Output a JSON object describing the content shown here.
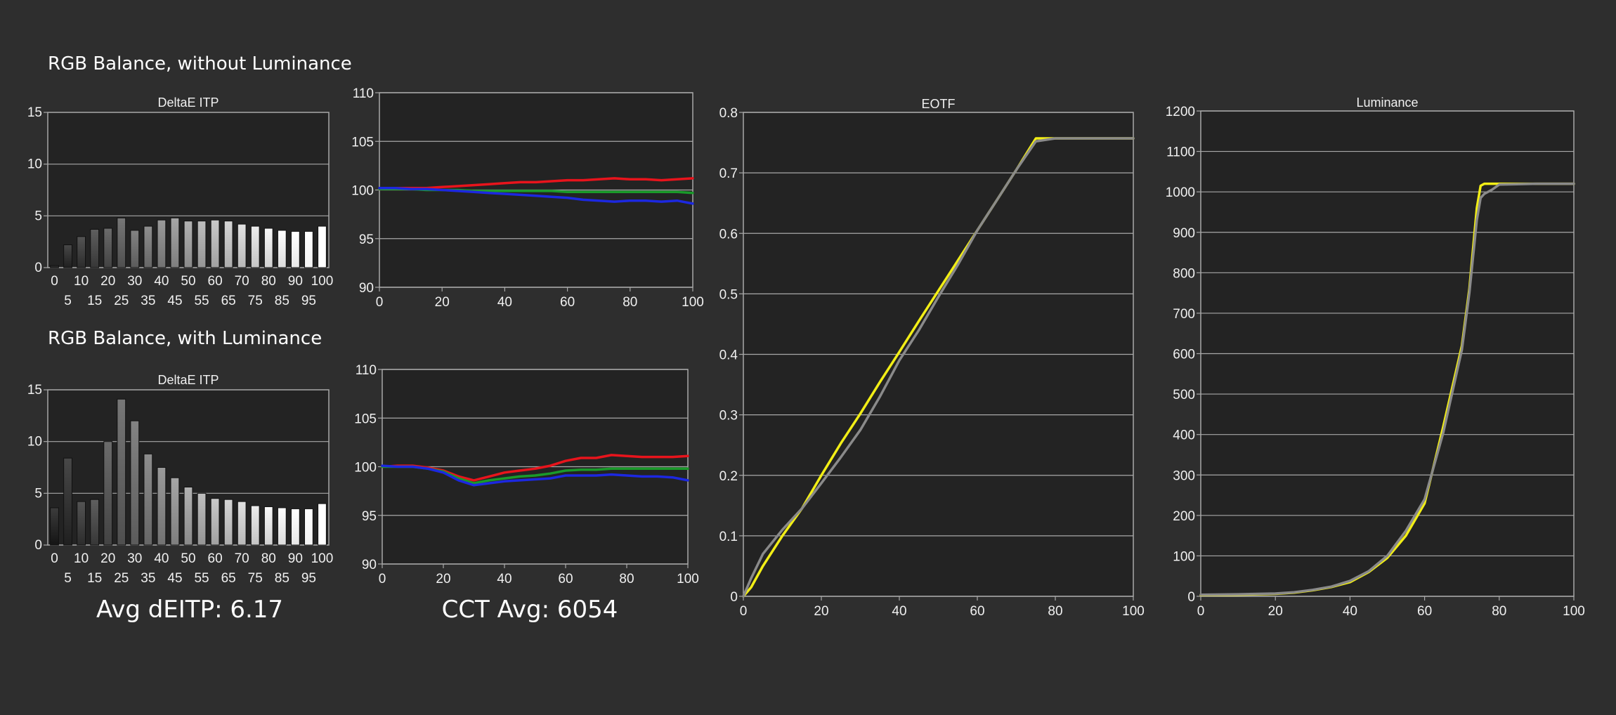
{
  "sections": {
    "without_luminance": "RGB Balance, without Luminance",
    "with_luminance": "RGB Balance, with Luminance"
  },
  "stats": {
    "avg_deitp": "Avg dEITP: 6.17",
    "cct_avg": "CCT Avg: 6054"
  },
  "colors": {
    "background": "#2e2e2e",
    "plot_bg": "#232323",
    "grid": "#a8a8a8",
    "red": "#e8141c",
    "green": "#1a9a2a",
    "blue": "#1c28e0",
    "yellow": "#f2ee16",
    "gray_ref": "#8a8a8a"
  },
  "chart_data": [
    {
      "id": "deltae-no-lum",
      "type": "bar",
      "title": "DeltaE ITP",
      "categories": [
        "0",
        "5",
        "10",
        "15",
        "20",
        "25",
        "30",
        "35",
        "40",
        "45",
        "50",
        "55",
        "60",
        "65",
        "70",
        "75",
        "80",
        "85",
        "90",
        "95",
        "100"
      ],
      "values": [
        0.2,
        2.2,
        3.0,
        3.7,
        3.8,
        4.8,
        3.6,
        4.0,
        4.6,
        4.8,
        4.5,
        4.5,
        4.6,
        4.5,
        4.2,
        4.0,
        3.8,
        3.6,
        3.5,
        3.5,
        4.0
      ],
      "ylim": [
        0,
        15
      ],
      "yticks": [
        "0",
        "5",
        "10",
        "15"
      ],
      "xticks_top": [
        "0",
        "10",
        "20",
        "30",
        "40",
        "50",
        "60",
        "70",
        "80",
        "90",
        "100"
      ],
      "xticks_bottom": [
        "5",
        "15",
        "25",
        "35",
        "45",
        "55",
        "65",
        "75",
        "85",
        "95"
      ]
    },
    {
      "id": "rgb-no-lum",
      "type": "line",
      "title": "",
      "xlim": [
        0,
        100
      ],
      "ylim": [
        90,
        110
      ],
      "xticks": [
        "0",
        "20",
        "40",
        "60",
        "80",
        "100"
      ],
      "yticks": [
        "90",
        "95",
        "100",
        "105",
        "110"
      ],
      "series": [
        {
          "color": "red",
          "x": [
            0,
            5,
            10,
            15,
            20,
            25,
            30,
            35,
            40,
            45,
            50,
            55,
            60,
            65,
            70,
            75,
            80,
            85,
            90,
            95,
            100
          ],
          "y": [
            100.1,
            100.2,
            100.2,
            100.2,
            100.3,
            100.4,
            100.5,
            100.6,
            100.7,
            100.8,
            100.8,
            100.9,
            101.0,
            101.0,
            101.1,
            101.2,
            101.1,
            101.1,
            101.0,
            101.1,
            101.2
          ]
        },
        {
          "color": "green",
          "x": [
            0,
            5,
            10,
            15,
            20,
            25,
            30,
            35,
            40,
            45,
            50,
            55,
            60,
            65,
            70,
            75,
            80,
            85,
            90,
            95,
            100
          ],
          "y": [
            100.1,
            100.1,
            100.1,
            100.0,
            100.0,
            100.0,
            99.9,
            99.9,
            99.9,
            99.9,
            99.9,
            99.9,
            99.8,
            99.8,
            99.8,
            99.8,
            99.8,
            99.8,
            99.8,
            99.8,
            99.7
          ]
        },
        {
          "color": "blue",
          "x": [
            0,
            5,
            10,
            15,
            20,
            25,
            30,
            35,
            40,
            45,
            50,
            55,
            60,
            65,
            70,
            75,
            80,
            85,
            90,
            95,
            100
          ],
          "y": [
            100.2,
            100.2,
            100.1,
            100.1,
            100.0,
            99.9,
            99.8,
            99.7,
            99.6,
            99.5,
            99.4,
            99.3,
            99.2,
            99.0,
            98.9,
            98.8,
            98.9,
            98.9,
            98.8,
            98.9,
            98.6
          ]
        }
      ]
    },
    {
      "id": "deltae-lum",
      "type": "bar",
      "title": "DeltaE ITP",
      "categories": [
        "0",
        "5",
        "10",
        "15",
        "20",
        "25",
        "30",
        "35",
        "40",
        "45",
        "50",
        "55",
        "60",
        "65",
        "70",
        "75",
        "80",
        "85",
        "90",
        "95",
        "100"
      ],
      "values": [
        3.6,
        8.4,
        4.2,
        4.4,
        10.0,
        14.1,
        12.0,
        8.8,
        7.5,
        6.5,
        5.6,
        5.0,
        4.5,
        4.4,
        4.2,
        3.8,
        3.7,
        3.6,
        3.5,
        3.5,
        4.0
      ],
      "ylim": [
        0,
        15
      ],
      "yticks": [
        "0",
        "5",
        "10",
        "15"
      ],
      "xticks_top": [
        "0",
        "10",
        "20",
        "30",
        "40",
        "50",
        "60",
        "70",
        "80",
        "90",
        "100"
      ],
      "xticks_bottom": [
        "5",
        "15",
        "25",
        "35",
        "45",
        "55",
        "65",
        "75",
        "85",
        "95"
      ]
    },
    {
      "id": "rgb-lum",
      "type": "line",
      "title": "",
      "xlim": [
        0,
        100
      ],
      "ylim": [
        90,
        110
      ],
      "xticks": [
        "0",
        "20",
        "40",
        "60",
        "80",
        "100"
      ],
      "yticks": [
        "90",
        "95",
        "100",
        "105",
        "110"
      ],
      "series": [
        {
          "color": "red",
          "x": [
            0,
            5,
            10,
            15,
            20,
            25,
            30,
            35,
            40,
            45,
            50,
            55,
            60,
            65,
            70,
            75,
            80,
            85,
            90,
            95,
            100
          ],
          "y": [
            100.0,
            100.1,
            100.1,
            99.9,
            99.6,
            99.0,
            98.6,
            99.0,
            99.4,
            99.6,
            99.8,
            100.1,
            100.6,
            100.9,
            100.9,
            101.2,
            101.1,
            101.0,
            101.0,
            101.0,
            101.1
          ]
        },
        {
          "color": "green",
          "x": [
            0,
            5,
            10,
            15,
            20,
            25,
            30,
            35,
            40,
            45,
            50,
            55,
            60,
            65,
            70,
            75,
            80,
            85,
            90,
            95,
            100
          ],
          "y": [
            100.0,
            100.0,
            100.0,
            99.8,
            99.5,
            98.8,
            98.3,
            98.6,
            98.8,
            99.0,
            99.1,
            99.3,
            99.6,
            99.7,
            99.7,
            99.8,
            99.8,
            99.8,
            99.8,
            99.8,
            99.8
          ]
        },
        {
          "color": "blue",
          "x": [
            0,
            5,
            10,
            15,
            20,
            25,
            30,
            35,
            40,
            45,
            50,
            55,
            60,
            65,
            70,
            75,
            80,
            85,
            90,
            95,
            100
          ],
          "y": [
            100.1,
            100.0,
            100.0,
            99.8,
            99.4,
            98.6,
            98.1,
            98.3,
            98.5,
            98.6,
            98.7,
            98.8,
            99.1,
            99.1,
            99.1,
            99.2,
            99.1,
            99.0,
            99.0,
            98.9,
            98.6
          ]
        }
      ]
    },
    {
      "id": "eotf",
      "type": "line",
      "title": "EOTF",
      "xlim": [
        0,
        100
      ],
      "ylim": [
        0,
        0.8
      ],
      "xticks": [
        "0",
        "20",
        "40",
        "60",
        "80",
        "100"
      ],
      "yticks": [
        "0",
        "0.1",
        "0.2",
        "0.3",
        "0.4",
        "0.5",
        "0.6",
        "0.7",
        "0.8"
      ],
      "series": [
        {
          "color": "yellow",
          "x": [
            0,
            2,
            5,
            10,
            15,
            20,
            25,
            30,
            35,
            40,
            45,
            50,
            55,
            60,
            65,
            70,
            75,
            80,
            90,
            100
          ],
          "y": [
            0,
            0.015,
            0.05,
            0.1,
            0.145,
            0.2,
            0.253,
            0.302,
            0.354,
            0.404,
            0.455,
            0.505,
            0.555,
            0.605,
            0.655,
            0.705,
            0.757,
            0.757,
            0.757,
            0.757
          ]
        },
        {
          "color": "gray_ref",
          "x": [
            0,
            2,
            5,
            10,
            15,
            20,
            25,
            30,
            35,
            40,
            45,
            50,
            55,
            60,
            65,
            70,
            75,
            80,
            90,
            100
          ],
          "y": [
            0,
            0.03,
            0.07,
            0.11,
            0.145,
            0.187,
            0.23,
            0.275,
            0.33,
            0.39,
            0.44,
            0.495,
            0.548,
            0.605,
            0.655,
            0.705,
            0.752,
            0.757,
            0.757,
            0.757
          ]
        }
      ]
    },
    {
      "id": "luminance",
      "type": "line",
      "title": "Luminance",
      "xlim": [
        0,
        100
      ],
      "ylim": [
        0,
        1200
      ],
      "xticks": [
        "0",
        "20",
        "40",
        "60",
        "80",
        "100"
      ],
      "yticks": [
        "0",
        "100",
        "200",
        "300",
        "400",
        "500",
        "600",
        "700",
        "800",
        "900",
        "1000",
        "1100",
        "1200"
      ],
      "series": [
        {
          "color": "yellow",
          "x": [
            0,
            10,
            20,
            25,
            30,
            35,
            40,
            45,
            50,
            55,
            60,
            65,
            70,
            72,
            74,
            75,
            76,
            78,
            80,
            90,
            100
          ],
          "y": [
            3,
            4,
            6,
            9,
            15,
            23,
            35,
            60,
            95,
            150,
            230,
            420,
            620,
            760,
            960,
            1015,
            1020,
            1020,
            1020,
            1020,
            1020
          ]
        },
        {
          "color": "gray_ref",
          "x": [
            0,
            10,
            20,
            25,
            30,
            35,
            40,
            45,
            50,
            55,
            60,
            65,
            70,
            72,
            74,
            75,
            76,
            78,
            80,
            90,
            100
          ],
          "y": [
            4,
            5,
            7,
            10,
            16,
            24,
            38,
            62,
            100,
            162,
            240,
            405,
            610,
            750,
            930,
            985,
            995,
            1005,
            1018,
            1020,
            1020
          ]
        }
      ]
    }
  ]
}
